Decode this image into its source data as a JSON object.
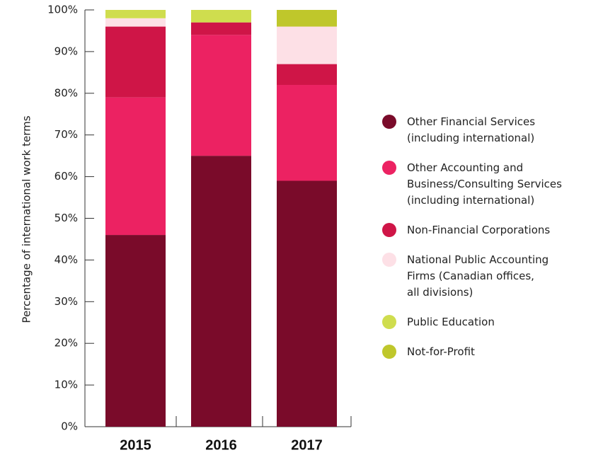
{
  "chart_data": {
    "type": "stacked_bar",
    "y_label": "Percentage of international work terms",
    "categories": [
      "2015",
      "2016",
      "2017"
    ],
    "series": [
      {
        "name": "Other Financial Services\n(including international)",
        "color": "#7a0b2a",
        "values": [
          46,
          65,
          59
        ]
      },
      {
        "name": "Other Accounting and\nBusiness/Consulting Services\n(including international)",
        "color": "#ec2262",
        "values": [
          33,
          29,
          23
        ]
      },
      {
        "name": "Non-Financial Corporations",
        "color": "#cf1547",
        "values": [
          17,
          3,
          5
        ]
      },
      {
        "name": "National Public Accounting\nFirms (Canadian offices,\nall divisions)",
        "color": "#fde0e6",
        "values": [
          2,
          0,
          9
        ]
      },
      {
        "name": "Public Education",
        "color": "#cfdd4e",
        "values": [
          2,
          3,
          0
        ]
      },
      {
        "name": "Not-for-Profit",
        "color": "#bfc72b",
        "values": [
          0,
          0,
          4
        ]
      }
    ],
    "ylim": [
      0,
      100
    ],
    "yticks": [
      {
        "value": 0,
        "label": "0%"
      },
      {
        "value": 10,
        "label": "10%"
      },
      {
        "value": 20,
        "label": "20%"
      },
      {
        "value": 30,
        "label": "30%"
      },
      {
        "value": 40,
        "label": "40%"
      },
      {
        "value": 50,
        "label": "50%"
      },
      {
        "value": 60,
        "label": "60%"
      },
      {
        "value": 70,
        "label": "70%"
      },
      {
        "value": 80,
        "label": "80%"
      },
      {
        "value": 90,
        "label": "90%"
      },
      {
        "value": 100,
        "label": "100%"
      }
    ],
    "legend": "right"
  }
}
